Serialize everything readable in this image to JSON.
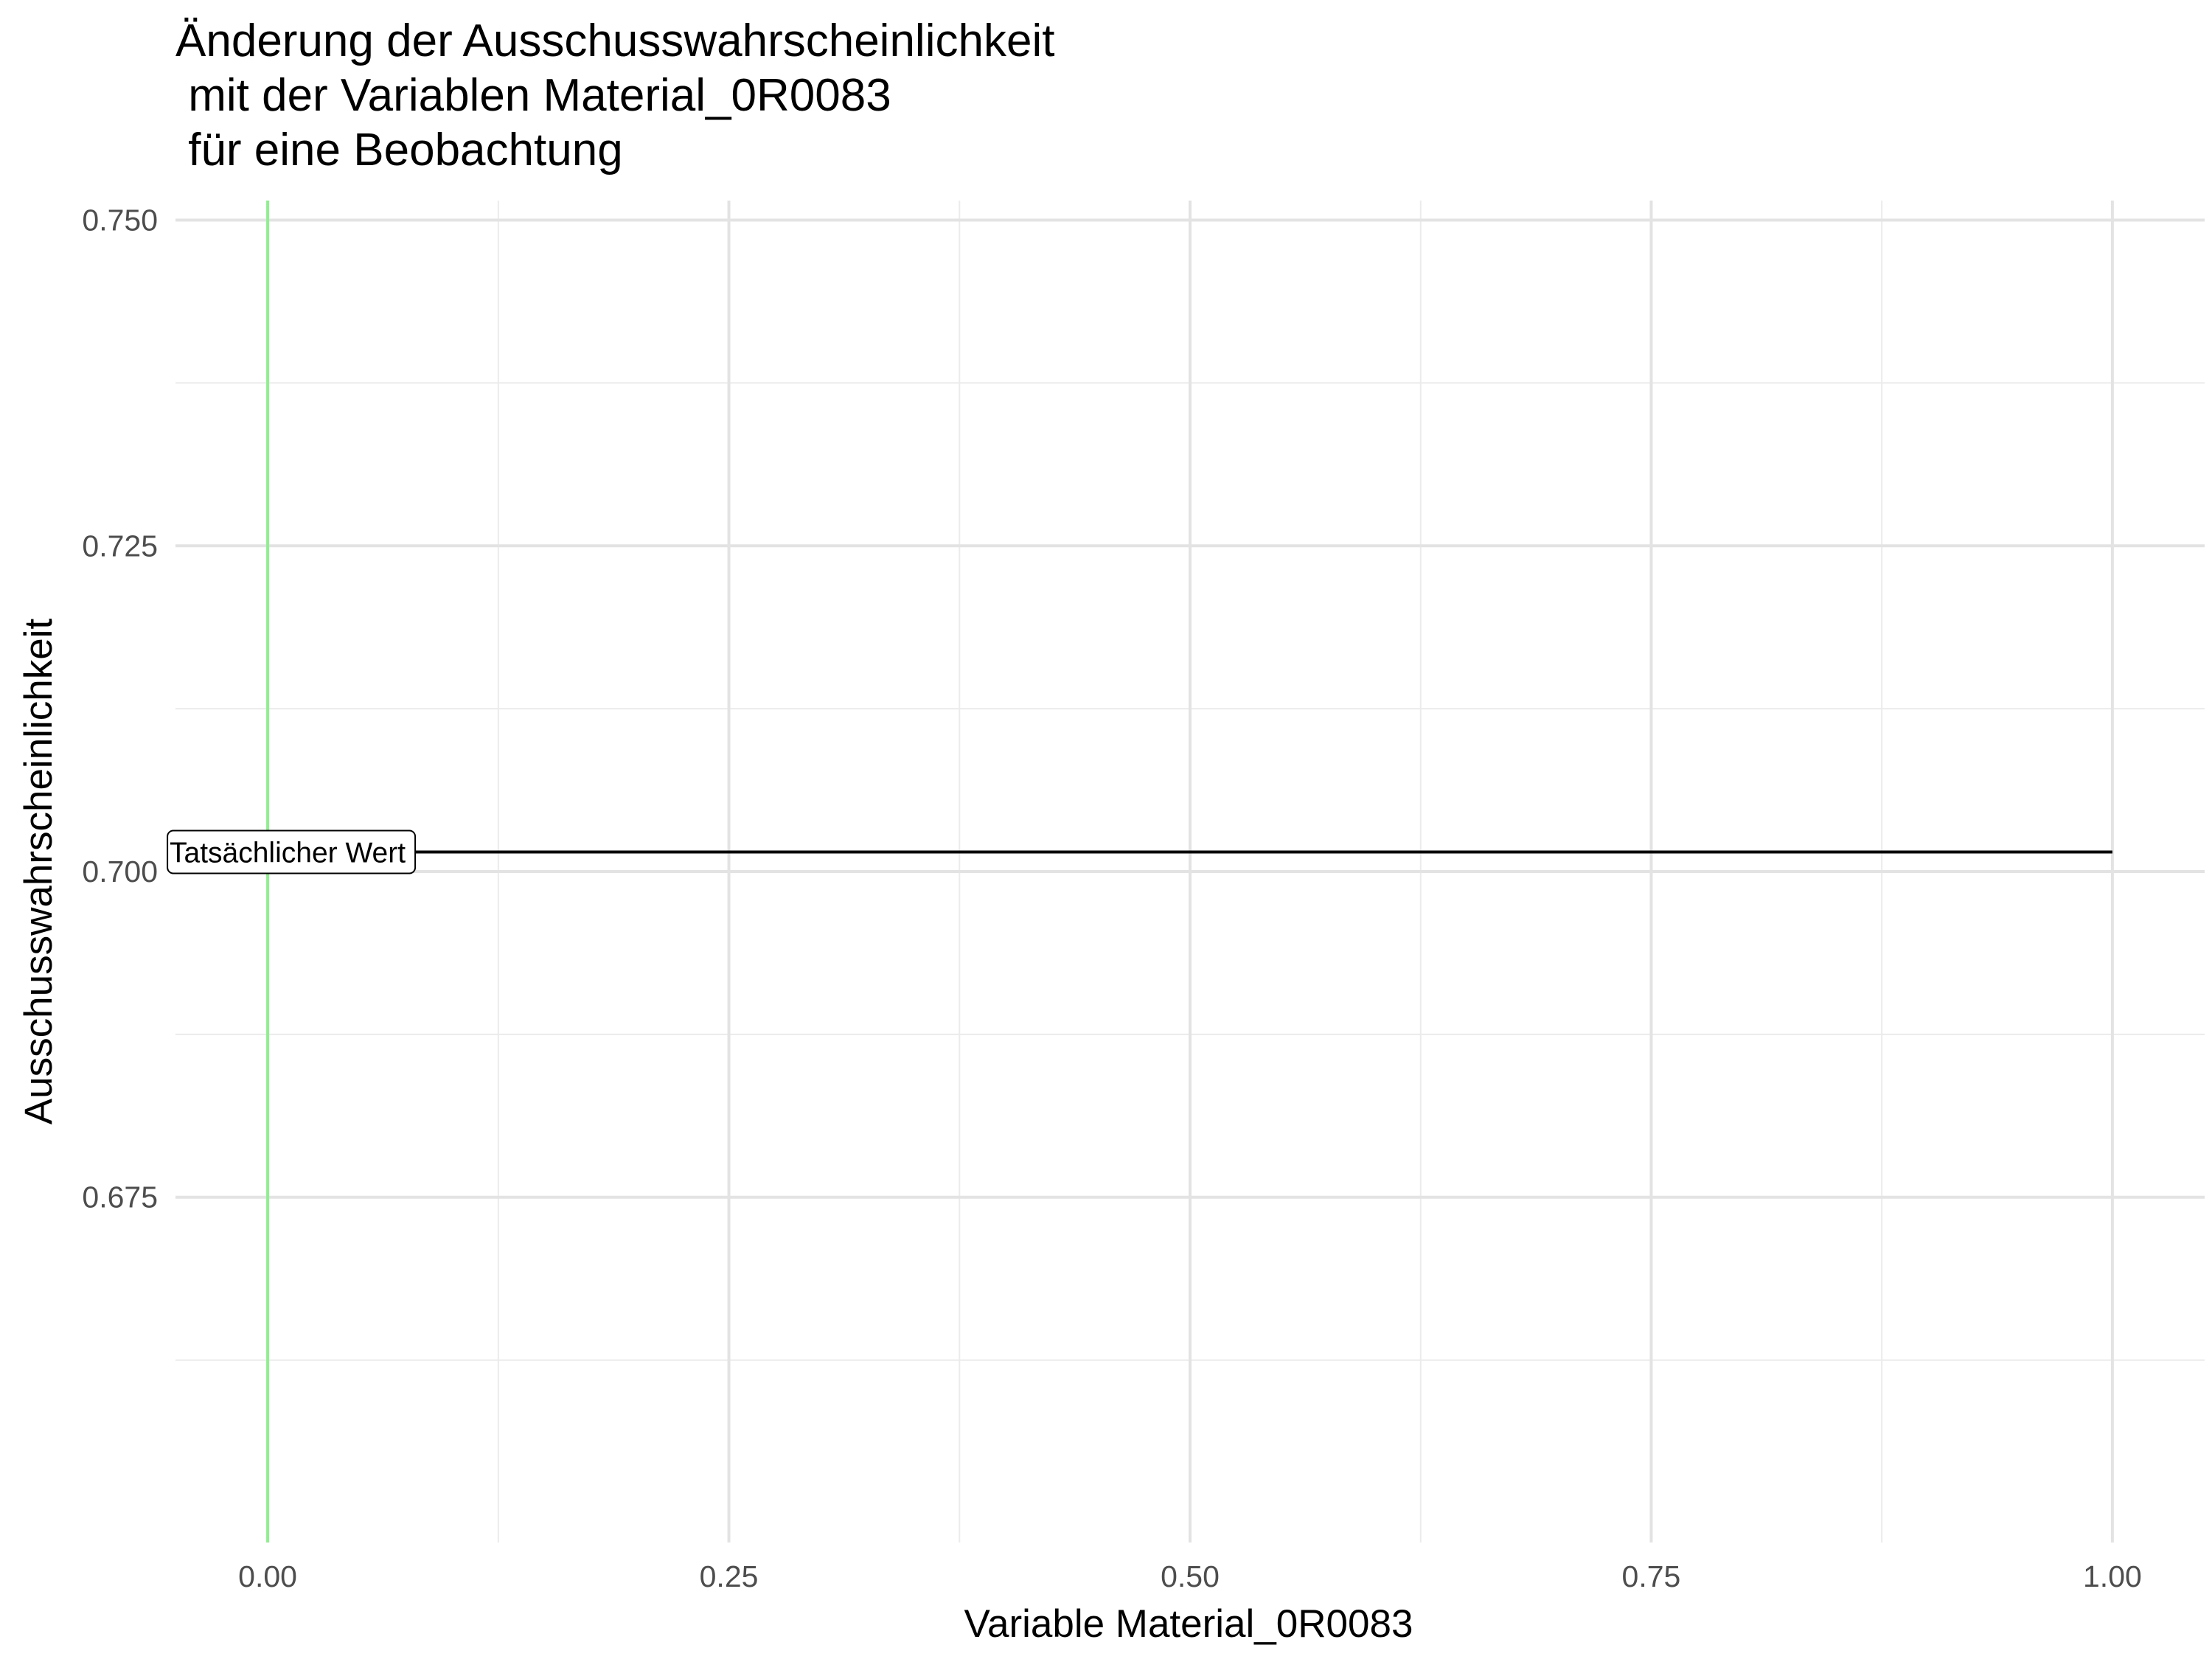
{
  "chart_data": {
    "type": "line",
    "title_lines": [
      "Änderung der Ausschusswahrscheinlichkeit",
      " mit der Variablen Material_0R0083",
      " für eine Beobachtung"
    ],
    "xlabel": "Variable Material_0R0083",
    "ylabel": "Ausschusswahrscheinlichkeit",
    "xlim": [
      -0.05,
      1.05
    ],
    "ylim": [
      0.6485,
      0.7515
    ],
    "x_ticks": [
      0.0,
      0.25,
      0.5,
      0.75,
      1.0
    ],
    "x_tick_labels": [
      "0.00",
      "0.25",
      "0.50",
      "0.75",
      "1.00"
    ],
    "y_ticks": [
      0.675,
      0.7,
      0.725,
      0.75
    ],
    "y_tick_labels": [
      "0.675",
      "0.700",
      "0.725",
      "0.750"
    ],
    "grid": true,
    "series": [
      {
        "x": [
          0.0,
          1.0
        ],
        "y": [
          0.7015,
          0.7015
        ],
        "color": "#000000"
      }
    ],
    "reference_line": {
      "x": 0.0,
      "color": "#90ee90"
    },
    "annotation": {
      "text": "Tatsächlicher Wert",
      "x": 0.0,
      "y": 0.7015
    }
  }
}
